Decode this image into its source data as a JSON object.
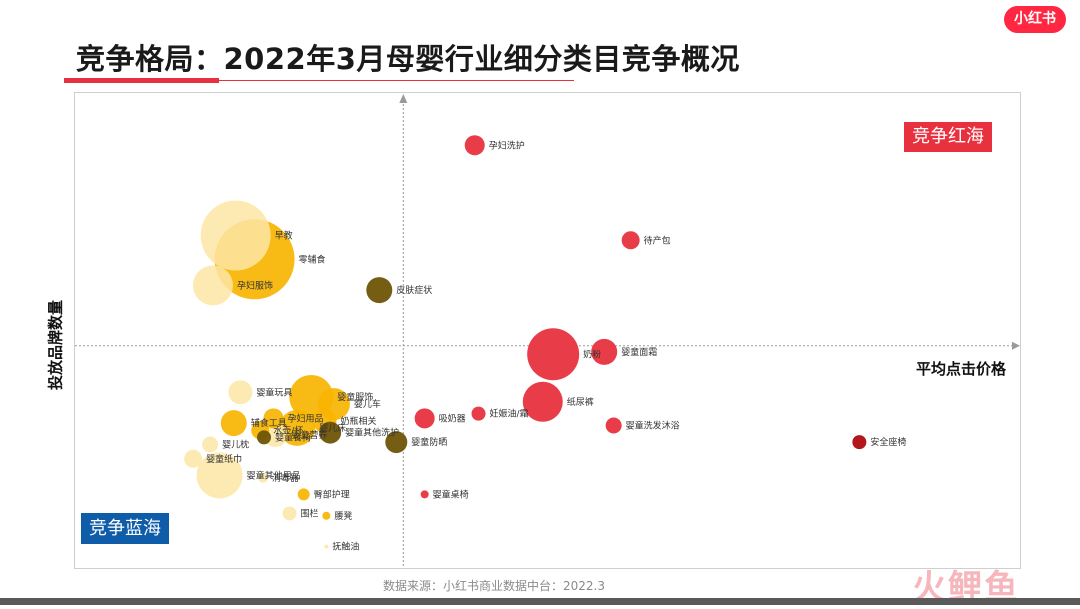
{
  "header": {
    "title": "竞争格局：2022年3月母婴行业细分类目竞争概况",
    "brand_logo": "小红书"
  },
  "footer": {
    "source": "数据来源：小红书商业数据中台：2022.3",
    "watermark": "火鲤鱼"
  },
  "colors": {
    "red": "#e8313f",
    "gold": "#f7b400",
    "pale": "#fde6a6",
    "olive": "#6e5406",
    "darkred": "#b3161c",
    "blue": "#0f5ca8"
  },
  "chart_data": {
    "type": "scatter",
    "xlabel": "平均点击价格",
    "ylabel": "投放品牌数量",
    "xlim": [
      0,
      100
    ],
    "ylim": [
      0,
      100
    ],
    "quadrant_split": {
      "x": 35,
      "y": 47
    },
    "quadrant_labels": {
      "top_right": "竞争红海",
      "bottom_left": "竞争蓝海"
    },
    "points": [
      {
        "label": "孕妇洗护",
        "x": 42.3,
        "y": 89.0,
        "size": 10,
        "color": "red"
      },
      {
        "label": "待产包",
        "x": 58.8,
        "y": 69.0,
        "size": 9,
        "color": "red"
      },
      {
        "label": "早教",
        "x": 17.0,
        "y": 70.0,
        "size": 35,
        "color": "pale"
      },
      {
        "label": "零辅食",
        "x": 19.0,
        "y": 65.0,
        "size": 40,
        "color": "gold"
      },
      {
        "label": "孕妇服饰",
        "x": 14.6,
        "y": 59.5,
        "size": 20,
        "color": "pale"
      },
      {
        "label": "皮肤症状",
        "x": 32.2,
        "y": 58.5,
        "size": 13,
        "color": "olive"
      },
      {
        "label": "奶粉",
        "x": 50.6,
        "y": 45.0,
        "size": 26,
        "color": "red"
      },
      {
        "label": "婴童面霜",
        "x": 56.0,
        "y": 45.5,
        "size": 13,
        "color": "red"
      },
      {
        "label": "纸尿裤",
        "x": 49.5,
        "y": 35.0,
        "size": 20,
        "color": "red"
      },
      {
        "label": "吸奶器",
        "x": 37.0,
        "y": 31.5,
        "size": 10,
        "color": "red"
      },
      {
        "label": "妊娠油/霜",
        "x": 42.7,
        "y": 32.5,
        "size": 7,
        "color": "red"
      },
      {
        "label": "婴童洗发沐浴",
        "x": 57.0,
        "y": 30.0,
        "size": 8,
        "color": "red"
      },
      {
        "label": "安全座椅",
        "x": 83.0,
        "y": 26.5,
        "size": 7,
        "color": "darkred"
      },
      {
        "label": "婴童防晒",
        "x": 34.0,
        "y": 26.5,
        "size": 11,
        "color": "olive"
      },
      {
        "label": "婴童桌椅",
        "x": 37.0,
        "y": 15.5,
        "size": 4,
        "color": "red"
      },
      {
        "label": "婴童服饰",
        "x": 25.0,
        "y": 36.0,
        "size": 22,
        "color": "gold"
      },
      {
        "label": "婴儿车",
        "x": 27.4,
        "y": 34.5,
        "size": 16,
        "color": "gold"
      },
      {
        "label": "奶瓶相关",
        "x": 26.4,
        "y": 31.0,
        "size": 12,
        "color": "gold"
      },
      {
        "label": "婴儿床",
        "x": 23.5,
        "y": 29.5,
        "size": 18,
        "color": "gold"
      },
      {
        "label": "婴童其他洗护",
        "x": 27.0,
        "y": 28.5,
        "size": 11,
        "color": "olive"
      },
      {
        "label": "孕妇用品",
        "x": 21.0,
        "y": 31.5,
        "size": 10,
        "color": "gold"
      },
      {
        "label": "婴童玩具",
        "x": 17.5,
        "y": 37.0,
        "size": 12,
        "color": "pale"
      },
      {
        "label": "辅食工具",
        "x": 16.8,
        "y": 30.5,
        "size": 13,
        "color": "gold"
      },
      {
        "label": "水壶/杯",
        "x": 19.6,
        "y": 29.0,
        "size": 9,
        "color": "gold"
      },
      {
        "label": "婴童营养",
        "x": 21.2,
        "y": 28.0,
        "size": 12,
        "color": "pale"
      },
      {
        "label": "婴童餐椅",
        "x": 20.0,
        "y": 27.5,
        "size": 7,
        "color": "olive"
      },
      {
        "label": "婴儿枕",
        "x": 14.3,
        "y": 26.0,
        "size": 8,
        "color": "pale"
      },
      {
        "label": "婴童纸巾",
        "x": 12.5,
        "y": 23.0,
        "size": 9,
        "color": "pale"
      },
      {
        "label": "婴童其他用品",
        "x": 15.3,
        "y": 19.5,
        "size": 23,
        "color": "pale"
      },
      {
        "label": "消毒器",
        "x": 19.9,
        "y": 19.0,
        "size": 5,
        "color": "pale"
      },
      {
        "label": "臀部护理",
        "x": 24.2,
        "y": 15.5,
        "size": 6,
        "color": "gold"
      },
      {
        "label": "围栏",
        "x": 22.7,
        "y": 11.5,
        "size": 7,
        "color": "pale"
      },
      {
        "label": "腰凳",
        "x": 26.6,
        "y": 11.0,
        "size": 4,
        "color": "gold"
      },
      {
        "label": "抚触油",
        "x": 26.6,
        "y": 4.5,
        "size": 2,
        "color": "pale"
      }
    ]
  }
}
